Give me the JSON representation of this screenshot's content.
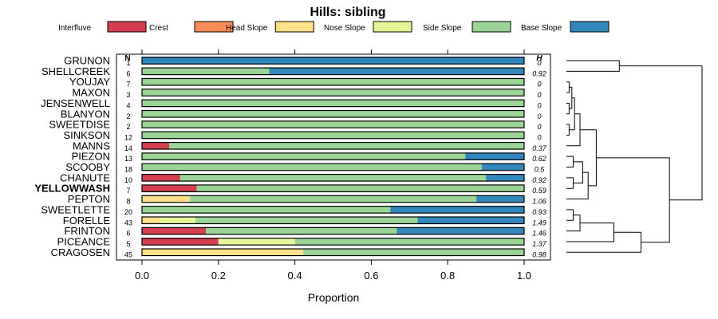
{
  "chart_data": {
    "type": "bar",
    "orientation": "horizontal",
    "stacked": true,
    "title": "Hills: sibling",
    "xlabel": "Proportion",
    "xlim": [
      0,
      1
    ],
    "x_ticks": [
      "0.0",
      "0.2",
      "0.4",
      "0.6",
      "0.8",
      "1.0"
    ],
    "n_header": "N",
    "h_header": "H",
    "legend_position": "top",
    "legend": [
      {
        "name": "Interfluve",
        "color": "#d53e4f"
      },
      {
        "name": "Crest",
        "color": "#fc8d59"
      },
      {
        "name": "Head Slope",
        "color": "#fee08b"
      },
      {
        "name": "Nose Slope",
        "color": "#e6f598"
      },
      {
        "name": "Side Slope",
        "color": "#99d594"
      },
      {
        "name": "Base Slope",
        "color": "#3288bd"
      }
    ],
    "highlighted": "YELLOWWASH",
    "rows": [
      {
        "name": "GRUNON",
        "n": "1",
        "h": "0",
        "values": [
          0,
          0,
          0,
          0,
          0,
          1.0
        ]
      },
      {
        "name": "SHELLCREEK",
        "n": "6",
        "h": "0.92",
        "values": [
          0,
          0,
          0,
          0,
          0.333,
          0.667
        ]
      },
      {
        "name": "YOUJAY",
        "n": "7",
        "h": "0",
        "values": [
          0,
          0,
          0,
          0,
          1.0,
          0
        ]
      },
      {
        "name": "MAXON",
        "n": "3",
        "h": "0",
        "values": [
          0,
          0,
          0,
          0,
          1.0,
          0
        ]
      },
      {
        "name": "JENSENWELL",
        "n": "4",
        "h": "0",
        "values": [
          0,
          0,
          0,
          0,
          1.0,
          0
        ]
      },
      {
        "name": "BLANYON",
        "n": "2",
        "h": "0",
        "values": [
          0,
          0,
          0,
          0,
          1.0,
          0
        ]
      },
      {
        "name": "SWEETDISE",
        "n": "2",
        "h": "0",
        "values": [
          0,
          0,
          0,
          0,
          1.0,
          0
        ]
      },
      {
        "name": "SINKSON",
        "n": "12",
        "h": "0",
        "values": [
          0,
          0,
          0,
          0,
          1.0,
          0
        ]
      },
      {
        "name": "MANNS",
        "n": "14",
        "h": "0.37",
        "values": [
          0.071,
          0,
          0,
          0,
          0.929,
          0
        ]
      },
      {
        "name": "PIEZON",
        "n": "13",
        "h": "0.62",
        "values": [
          0,
          0,
          0,
          0,
          0.846,
          0.154
        ]
      },
      {
        "name": "SCOOBY",
        "n": "18",
        "h": "0.5",
        "values": [
          0,
          0,
          0,
          0,
          0.889,
          0.111
        ]
      },
      {
        "name": "CHANUTE",
        "n": "10",
        "h": "0.92",
        "values": [
          0.1,
          0,
          0,
          0,
          0.8,
          0.1
        ]
      },
      {
        "name": "YELLOWWASH",
        "n": "7",
        "h": "0.59",
        "values": [
          0.143,
          0,
          0,
          0,
          0.857,
          0
        ]
      },
      {
        "name": "PEPTON",
        "n": "8",
        "h": "1.06",
        "values": [
          0,
          0,
          0.125,
          0,
          0.75,
          0.125
        ]
      },
      {
        "name": "SWEETLETTE",
        "n": "20",
        "h": "0.93",
        "values": [
          0,
          0,
          0,
          0,
          0.65,
          0.35
        ]
      },
      {
        "name": "FORELLE",
        "n": "43",
        "h": "1.49",
        "values": [
          0,
          0,
          0.047,
          0.093,
          0.581,
          0.279
        ]
      },
      {
        "name": "FRINTON",
        "n": "6",
        "h": "1.46",
        "values": [
          0.167,
          0,
          0,
          0,
          0.5,
          0.333
        ]
      },
      {
        "name": "PICEANCE",
        "n": "5",
        "h": "1.37",
        "values": [
          0.2,
          0,
          0,
          0.2,
          0.6,
          0
        ]
      },
      {
        "name": "CRAGOSEN",
        "n": "45",
        "h": "0.98",
        "values": [
          0,
          0,
          0.422,
          0,
          0.578,
          0
        ]
      }
    ],
    "dendrogram": {
      "leaf_order": [
        "GRUNON",
        "SHELLCREEK",
        "YOUJAY",
        "MAXON",
        "JENSENWELL",
        "BLANYON",
        "SWEETDISE",
        "SINKSON",
        "MANNS",
        "PIEZON",
        "SCOOBY",
        "CHANUTE",
        "YELLOWWASH",
        "PEPTON",
        "SWEETLETTE",
        "FORELLE",
        "FRINTON",
        "PICEANCE",
        "CRAGOSEN"
      ],
      "merges": [
        {
          "a": "L0",
          "b": "L1",
          "height": 0.39
        },
        {
          "a": "L2",
          "b": "L3",
          "height": 0.02
        },
        {
          "a": "L4",
          "b": "L5",
          "height": 0.02
        },
        {
          "a": "N1",
          "b": "N2",
          "height": 0.04
        },
        {
          "a": "L6",
          "b": "L7",
          "height": 0.02
        },
        {
          "a": "N3",
          "b": "N4",
          "height": 0.06
        },
        {
          "a": "N5",
          "b": "L8",
          "height": 0.1
        },
        {
          "a": "L9",
          "b": "L10",
          "height": 0.05
        },
        {
          "a": "L11",
          "b": "L12",
          "height": 0.05
        },
        {
          "a": "N7",
          "b": "N8",
          "height": 0.12
        },
        {
          "a": "N9",
          "b": "L13",
          "height": 0.16
        },
        {
          "a": "N6",
          "b": "N10",
          "height": 0.22
        },
        {
          "a": "L14",
          "b": "L15",
          "height": 0.05
        },
        {
          "a": "N12",
          "b": "L16",
          "height": 0.1
        },
        {
          "a": "N13",
          "b": "L17",
          "height": 0.35
        },
        {
          "a": "N14",
          "b": "L18",
          "height": 0.55
        },
        {
          "a": "N11",
          "b": "N15",
          "height": 0.76
        },
        {
          "a": "N0",
          "b": "N16",
          "height": 1.0
        }
      ]
    }
  }
}
